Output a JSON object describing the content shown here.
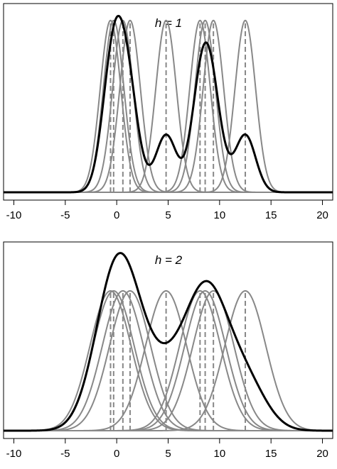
{
  "chart_data": [
    {
      "type": "line",
      "title": "h = 1",
      "bandwidth": 1,
      "kernel_centers": [
        -0.6,
        -0.3,
        0.6,
        1.3,
        4.8,
        8.1,
        8.6,
        9.4,
        12.5
      ],
      "xlim": [
        -11,
        21
      ],
      "xticks": [
        -10,
        -5,
        0,
        5,
        10,
        15,
        20
      ],
      "tick_labels": [
        "-10",
        "-5",
        "0",
        "5",
        "10",
        "15",
        "20"
      ],
      "ylim": [
        0,
        1.09
      ],
      "xlabel": "",
      "ylabel": "",
      "series": [
        {
          "role": "kernels",
          "color": "#888888"
        },
        {
          "role": "centers",
          "color": "#888888",
          "style": "dashed"
        },
        {
          "role": "density",
          "color": "#000000"
        }
      ]
    },
    {
      "type": "line",
      "title": "h = 2",
      "bandwidth": 2,
      "kernel_centers": [
        -0.6,
        -0.3,
        0.6,
        1.3,
        4.8,
        8.1,
        8.6,
        9.4,
        12.5
      ],
      "xlim": [
        -11,
        21
      ],
      "xticks": [
        -10,
        -5,
        0,
        5,
        10,
        15,
        20
      ],
      "tick_labels": [
        "-10",
        "-5",
        "0",
        "5",
        "10",
        "15",
        "20"
      ],
      "ylim": [
        0,
        1.34
      ],
      "xlabel": "",
      "ylabel": "",
      "series": [
        {
          "role": "kernels",
          "color": "#888888"
        },
        {
          "role": "centers",
          "color": "#888888",
          "style": "dashed"
        },
        {
          "role": "density",
          "color": "#000000"
        }
      ]
    }
  ]
}
